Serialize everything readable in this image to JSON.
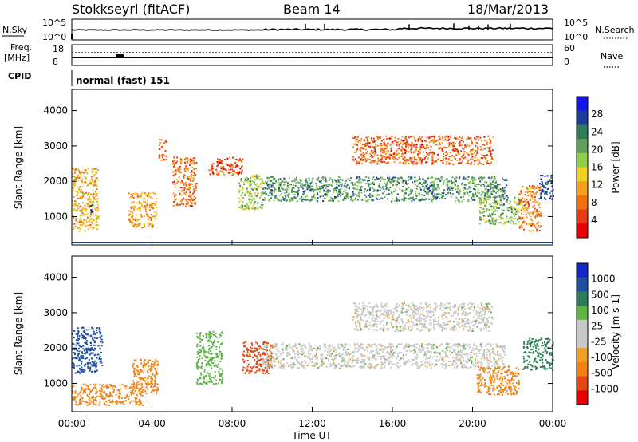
{
  "header": {
    "station": "Stokkseyri (fitACF)",
    "beam": "Beam 14",
    "date": "18/Mar/2013"
  },
  "strip_panels": {
    "nsky_label": "N.Sky",
    "nsearch_label": "N.Search",
    "noise_ticks_left": [
      "10^5",
      "10^0"
    ],
    "noise_ticks_right": [
      "10^5",
      "10^0"
    ],
    "freq_label_1": "Freq.",
    "freq_label_2": "[MHz]",
    "freq_ticks": [
      "18",
      "8"
    ],
    "nave_label": "Nave",
    "nave_ticks": [
      "60",
      "0"
    ],
    "cpid_label": "CPID",
    "cpid_value": "normal (fast) 151"
  },
  "x_axis": {
    "label": "Time UT",
    "ticks": [
      "00:00",
      "04:00",
      "08:00",
      "12:00",
      "16:00",
      "20:00",
      "00:00"
    ]
  },
  "colors": {
    "power_scale": [
      "#1414e6",
      "#1c3c9c",
      "#2d7d5a",
      "#5fa05a",
      "#8fd04a",
      "#f0d020",
      "#f5a020",
      "#f07010",
      "#e63a14",
      "#e60000"
    ],
    "velocity_scale": [
      "#1428c8",
      "#1e50a0",
      "#2d7d5a",
      "#5fb446",
      "#c8c8c8",
      "#c8c8c8",
      "#f0a028",
      "#f08214",
      "#e64614",
      "#e60000"
    ]
  },
  "chart_data": [
    {
      "type": "heatmap",
      "name": "power",
      "ylabel": "Slant Range [km]",
      "ylim": [
        200,
        4600
      ],
      "y_ticks": [
        1000,
        2000,
        3000,
        4000
      ],
      "xlim_hours": [
        0,
        24
      ],
      "colorbar_label": "Power [dB]",
      "colorbar_ticks": [
        "4",
        "8",
        "12",
        "16",
        "20",
        "24",
        "28"
      ],
      "colorbar_range": [
        0,
        32
      ],
      "features": [
        {
          "t": [
            0.0,
            1.3
          ],
          "r": [
            600,
            2400
          ],
          "level": 12
        },
        {
          "t": [
            0.9,
            1.0
          ],
          "r": [
            1100,
            1500
          ],
          "level": 26
        },
        {
          "t": [
            2.8,
            4.2
          ],
          "r": [
            700,
            1700
          ],
          "level": 11
        },
        {
          "t": [
            4.3,
            4.7
          ],
          "r": [
            2600,
            3200
          ],
          "level": 8
        },
        {
          "t": [
            5.0,
            6.2
          ],
          "r": [
            1300,
            2700
          ],
          "level": 8
        },
        {
          "t": [
            6.8,
            8.5
          ],
          "r": [
            2200,
            2700
          ],
          "level": 6
        },
        {
          "t": [
            8.3,
            9.5
          ],
          "r": [
            1200,
            2200
          ],
          "level": 18
        },
        {
          "t": [
            9.5,
            21.7
          ],
          "r": [
            1450,
            2150
          ],
          "level": 22
        },
        {
          "t": [
            14.0,
            21.0
          ],
          "r": [
            2500,
            3300
          ],
          "level": 7
        },
        {
          "t": [
            20.3,
            22.3
          ],
          "r": [
            800,
            1600
          ],
          "level": 19
        },
        {
          "t": [
            22.3,
            23.4
          ],
          "r": [
            600,
            1900
          ],
          "level": 9
        },
        {
          "t": [
            23.3,
            24.0
          ],
          "r": [
            1500,
            2200
          ],
          "level": 27
        }
      ]
    },
    {
      "type": "heatmap",
      "name": "velocity",
      "ylabel": "Slant Range [km]",
      "ylim": [
        200,
        4600
      ],
      "y_ticks": [
        1000,
        2000,
        3000,
        4000
      ],
      "xlim_hours": [
        0,
        24
      ],
      "colorbar_label": "Velocity [m s-1]",
      "colorbar_ticks": [
        "1000",
        "500",
        "100",
        "25",
        "-25",
        "-100",
        "-500",
        "-1000"
      ],
      "features": [
        {
          "t": [
            0.0,
            1.5
          ],
          "r": [
            1300,
            2600
          ],
          "velocity": 500
        },
        {
          "t": [
            0.0,
            3.5
          ],
          "r": [
            400,
            1000
          ],
          "velocity": -300
        },
        {
          "t": [
            3.0,
            4.3
          ],
          "r": [
            700,
            1700
          ],
          "velocity": -300
        },
        {
          "t": [
            6.2,
            7.5
          ],
          "r": [
            1000,
            2500
          ],
          "velocity": 60
        },
        {
          "t": [
            8.5,
            10.0
          ],
          "r": [
            1300,
            2200
          ],
          "velocity": -600
        },
        {
          "t": [
            9.5,
            21.6
          ],
          "r": [
            1450,
            2150
          ],
          "velocity": 0
        },
        {
          "t": [
            14.0,
            21.0
          ],
          "r": [
            2500,
            3300
          ],
          "velocity": 0
        },
        {
          "t": [
            20.2,
            22.3
          ],
          "r": [
            700,
            1500
          ],
          "velocity": -300
        },
        {
          "t": [
            22.5,
            24.0
          ],
          "r": [
            1400,
            2300
          ],
          "velocity": 200
        }
      ]
    }
  ]
}
